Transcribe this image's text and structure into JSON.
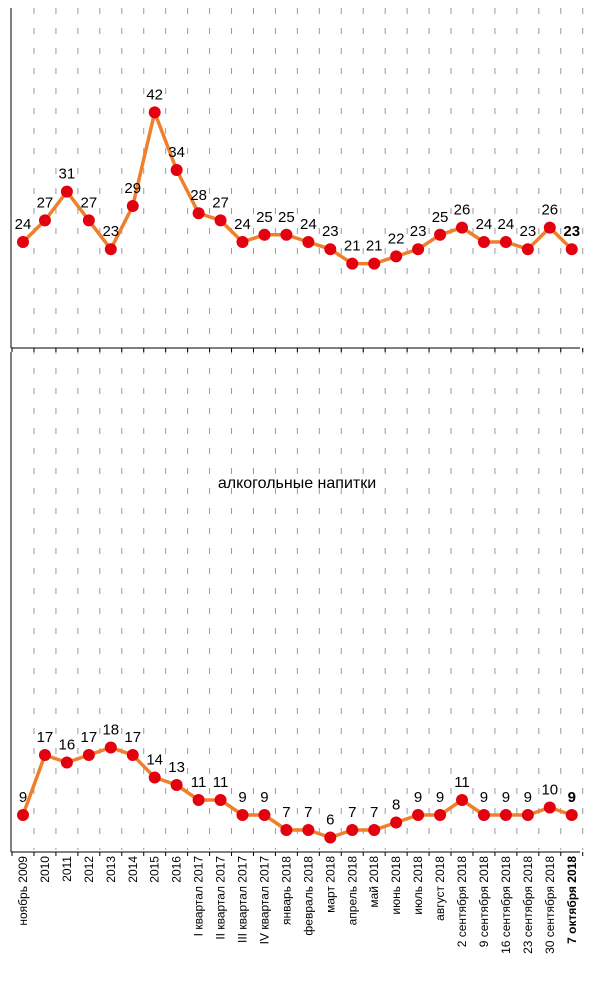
{
  "colors": {
    "line": "#f07f2b",
    "marker": "#e3000f",
    "grid": "#9a9a9a",
    "axis": "#000000"
  },
  "chart_data": [
    {
      "type": "line",
      "title": "",
      "grid": true,
      "categories": [
        "ноябрь 2009",
        "2010",
        "2011",
        "2012",
        "2013",
        "2014",
        "2015",
        "2016",
        "I квартал 2017",
        "II квартал 2017",
        "III квартал 2017",
        "IV квартал 2017",
        "январь 2018",
        "февраль 2018",
        "март 2018",
        "апрель 2018",
        "май 2018",
        "июнь 2018",
        "июль 2018",
        "август 2018",
        "2 сентября 2018",
        "9 сентября 2018",
        "16 сентября 2018",
        "23 сентября 2018",
        "30 сентября 2018",
        "7 октября 2018"
      ],
      "series": [
        {
          "values": [
            24,
            27,
            31,
            27,
            23,
            29,
            42,
            34,
            28,
            27,
            24,
            25,
            25,
            24,
            23,
            21,
            21,
            22,
            23,
            25,
            26,
            24,
            24,
            23,
            26,
            23
          ]
        }
      ],
      "value_labels": [
        "24",
        "27",
        "31",
        "27",
        "23",
        "29",
        "42",
        "34",
        "28",
        "27",
        "24",
        "25",
        "25",
        "24",
        "23",
        "21",
        "21",
        "22",
        "23",
        "25",
        "26",
        "24",
        "24",
        "23",
        "26",
        "23"
      ]
    },
    {
      "type": "line",
      "title": "алкогольные напитки",
      "grid": true,
      "categories": [
        "ноябрь 2009",
        "2010",
        "2011",
        "2012",
        "2013",
        "2014",
        "2015",
        "2016",
        "I квартал 2017",
        "II квартал 2017",
        "III квартал 2017",
        "IV квартал 2017",
        "январь 2018",
        "февраль 2018",
        "март 2018",
        "апрель 2018",
        "май 2018",
        "июнь 2018",
        "июль 2018",
        "август 2018",
        "2 сентября 2018",
        "9 сентября 2018",
        "16 сентября 2018",
        "23 сентября 2018",
        "30 сентября 2018",
        "7 октября 2018"
      ],
      "series": [
        {
          "values": [
            9,
            17,
            16,
            17,
            18,
            17,
            14,
            13,
            11,
            11,
            9,
            9,
            7,
            7,
            6,
            7,
            7,
            8,
            9,
            9,
            11,
            9,
            9,
            9,
            10,
            9
          ]
        }
      ],
      "value_labels": [
        "9",
        "17",
        "16",
        "17",
        "18",
        "17",
        "14",
        "13",
        "11",
        "11",
        "9",
        "9",
        "7",
        "7",
        "6",
        "7",
        "7",
        "8",
        "9",
        "9",
        "11",
        "9",
        "9",
        "9",
        "10",
        "9"
      ]
    }
  ]
}
